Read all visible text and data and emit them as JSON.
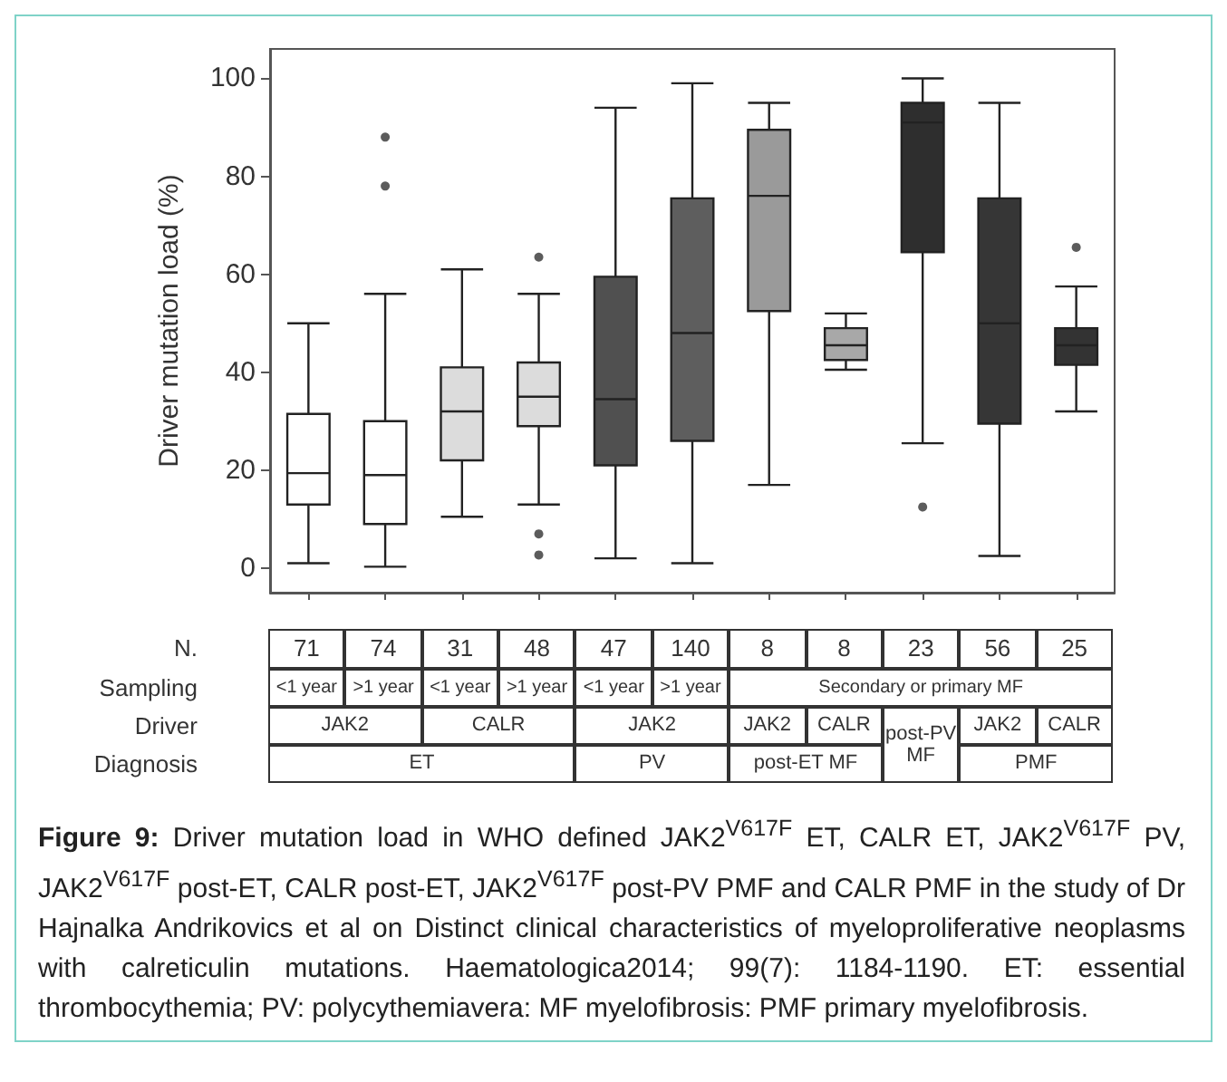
{
  "chart_data": {
    "type": "box",
    "ylabel": "Driver mutation load (%)",
    "categories": [
      null,
      null,
      null,
      null,
      null,
      null,
      null,
      null,
      null,
      null,
      null
    ],
    "colors": [
      "#ffffff",
      "#ffffff",
      "#dcdcdc",
      "#dcdcdc",
      "#505050",
      "#5e5e5e",
      "#9a9a9a",
      "#a8a8a8",
      "#2e2e2e",
      "#363636",
      "#333333"
    ],
    "boxes": [
      {
        "low": 1,
        "q1": 13,
        "median": 19.4,
        "q3": 31.5,
        "high": 50
      },
      {
        "low": 0.3,
        "q1": 9,
        "median": 19,
        "q3": 30,
        "high": 56,
        "outliers": [
          78,
          88
        ]
      },
      {
        "low": 10.5,
        "q1": 22,
        "median": 32,
        "q3": 41,
        "high": 61
      },
      {
        "low": 13,
        "q1": 29,
        "median": 35,
        "q3": 42,
        "high": 56,
        "outliers": [
          2.7,
          7,
          63.5
        ]
      },
      {
        "low": 2,
        "q1": 21,
        "median": 34.5,
        "q3": 59.5,
        "high": 94
      },
      {
        "low": 1,
        "q1": 26,
        "median": 48,
        "q3": 75.5,
        "high": 99
      },
      {
        "low": 17,
        "q1": 52.5,
        "median": 76,
        "q3": 89.5,
        "high": 95
      },
      {
        "low": 40.5,
        "q1": 42.5,
        "median": 45.5,
        "q3": 49,
        "high": 52
      },
      {
        "low": 25.5,
        "q1": 64.5,
        "median": 91,
        "q3": 95,
        "high": 100,
        "outliers": [
          12.5
        ]
      },
      {
        "low": 2.5,
        "q1": 29.5,
        "median": 50,
        "q3": 75.5,
        "high": 95
      },
      {
        "low": 32,
        "q1": 41.5,
        "median": 45.5,
        "q3": 49,
        "high": 57.5,
        "outliers": [
          65.5
        ]
      }
    ],
    "ylim": [
      -5,
      106
    ],
    "yticks": [
      0,
      20,
      40,
      60,
      80,
      100
    ],
    "tick_labels": "y",
    "grid": false,
    "annotations": [
      "N.",
      "Sampling",
      "Driver",
      "Diagnosis",
      "71",
      "74",
      "31",
      "48",
      "47",
      "140",
      "8",
      "8",
      "23",
      "56",
      "25",
      "<1 year",
      ">1 year",
      "<1 year",
      ">1 year",
      "<1 year",
      ">1 year",
      "Secondary or primary MF",
      "JAK2",
      "CALR",
      "JAK2",
      "JAK2",
      "CALR",
      "post-PV MF",
      "JAK2",
      "CALR",
      "ET",
      "PV",
      "post-ET MF",
      "PMF",
      "Figure 9:",
      "Driver mutation load in WHO defined JAK2$^{V617F}$ ET, CALR ET, JAK2$^{V617F}$ PV, JAK2$^{V617F}$ post-ET, CALR post-ET, JAK2$^{V617F}$ post-PV PMF and CALR PMF in the study of Dr Hajnalka Andrikovics et al on Distinct clinical characteristics of myeloproliferative neoplasms with calreticulin mutations. Haematologica2014; 99(7): 1184-1190. ET: essential thrombocythemia; PV: polycythemiavera: MF myelofibrosis: PMF primary myelofibrosis."
    ]
  }
}
